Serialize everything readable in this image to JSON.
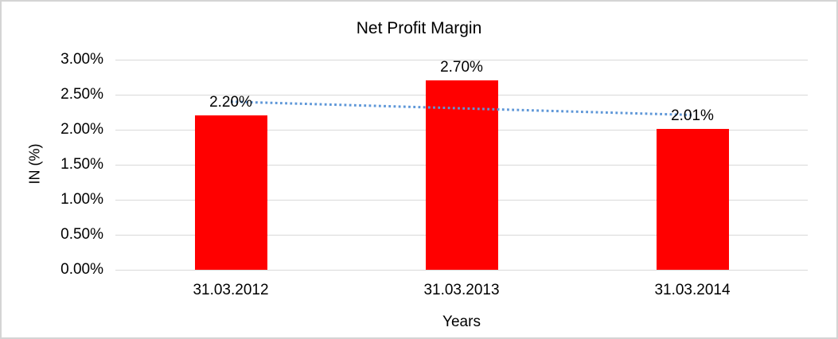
{
  "chart_data": {
    "type": "bar",
    "title": "Net Profit Margin",
    "xlabel": "Years",
    "ylabel": "IN (%)",
    "categories": [
      "31.03.2012",
      "31.03.2013",
      "31.03.2014"
    ],
    "values": [
      2.2,
      2.7,
      2.01
    ],
    "data_labels": [
      "2.20%",
      "2.70%",
      "2.01%"
    ],
    "ylim": [
      0,
      3.0
    ],
    "ytick_values": [
      0,
      0.5,
      1.0,
      1.5,
      2.0,
      2.5,
      3.0
    ],
    "ytick_labels": [
      "0.00%",
      "0.50%",
      "1.00%",
      "1.50%",
      "2.00%",
      "2.50%",
      "3.00%"
    ],
    "grid": true,
    "legend": "none",
    "bar_color": "#ff0000",
    "gridline_color": "#d9d9d9",
    "trendline": {
      "type": "linear",
      "style": "dotted",
      "color": "#5e97d8",
      "start_value": 2.4,
      "end_value": 2.21
    }
  }
}
